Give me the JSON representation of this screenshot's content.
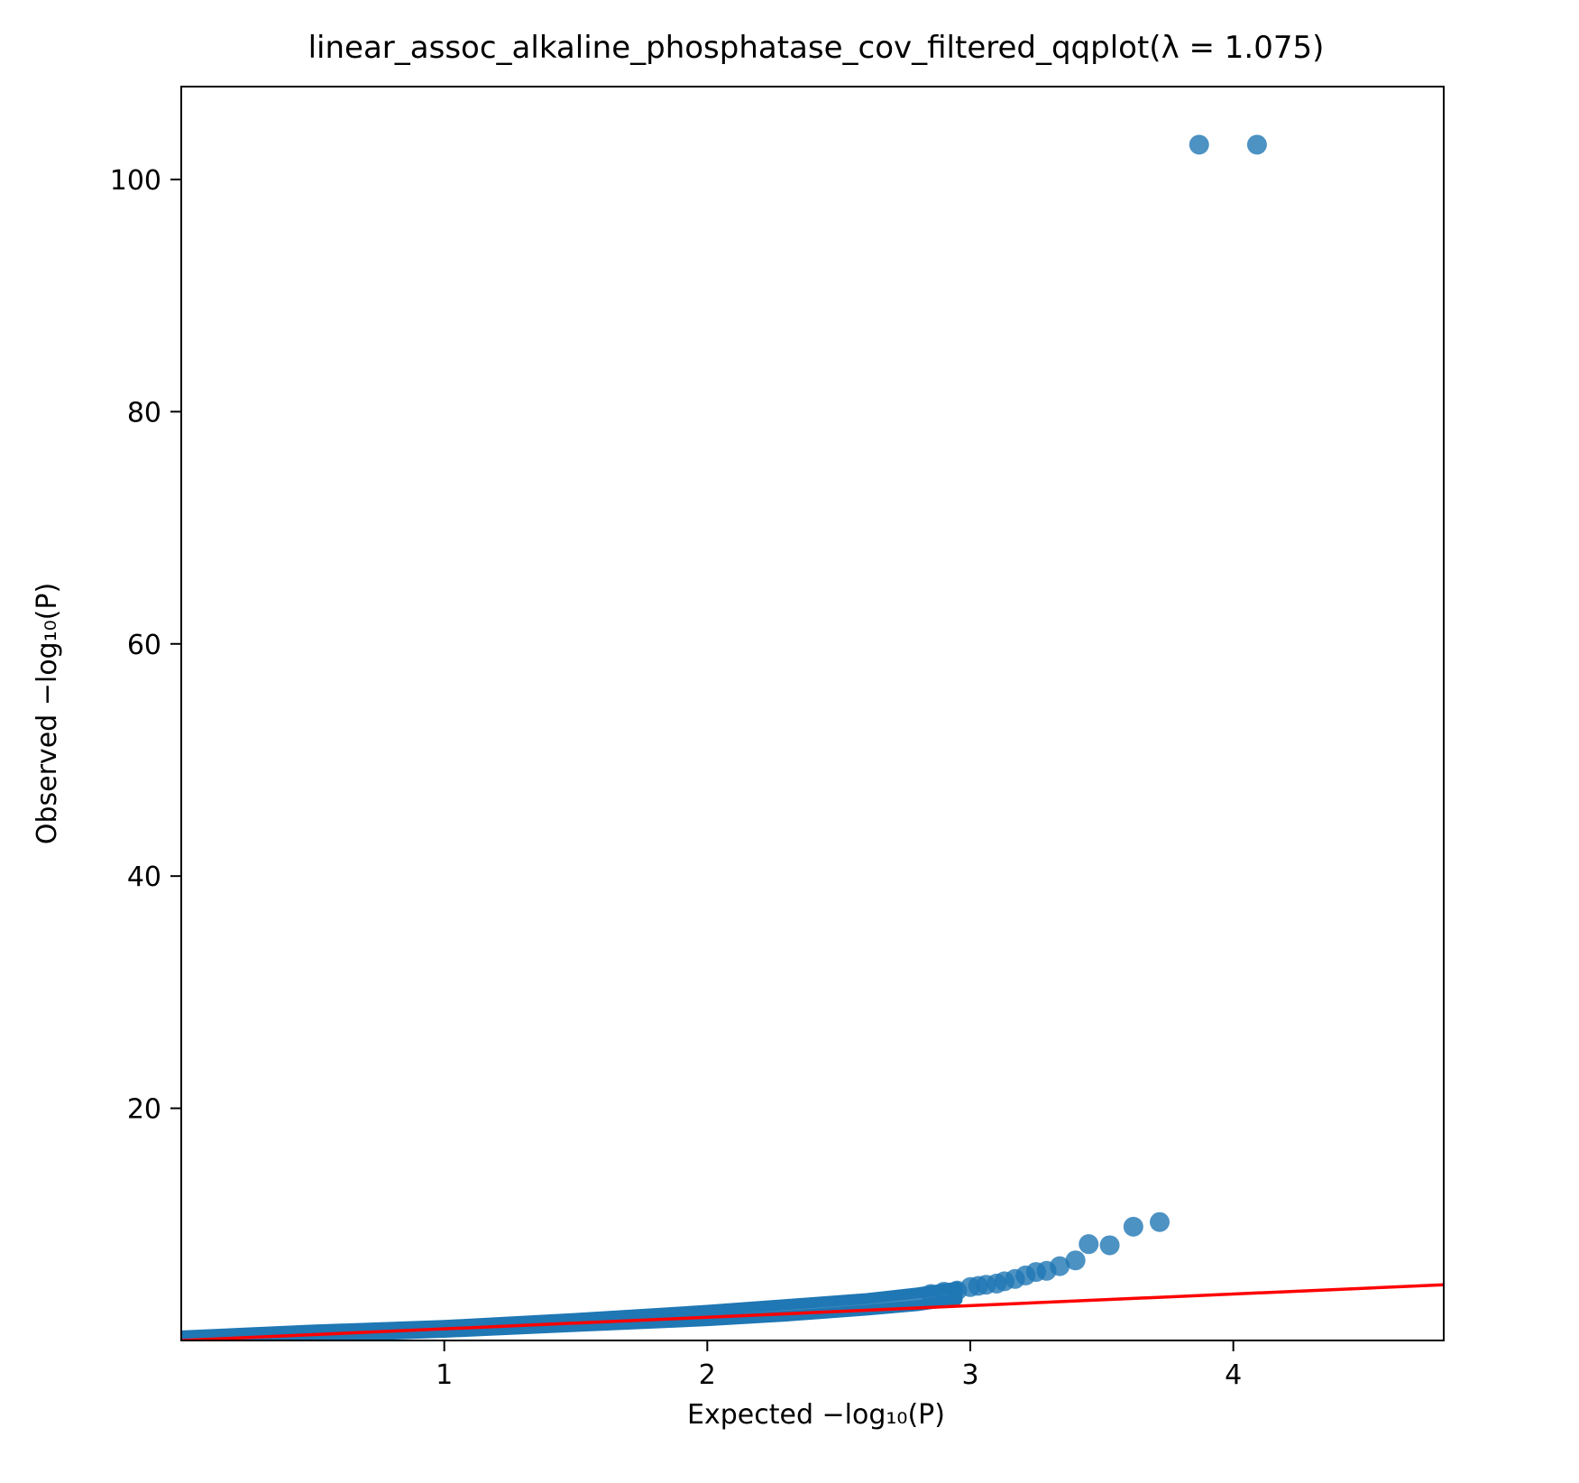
{
  "chart_data": {
    "type": "scatter",
    "title": "linear_assoc_alkaline_phosphatase_cov_filtered_qqplot(λ = 1.075)",
    "xlabel": "Expected −log₁₀(P)",
    "ylabel": "Observed −log₁₀(P)",
    "xlim": [
      0,
      4.8
    ],
    "ylim": [
      0,
      108
    ],
    "xticks": [
      1,
      2,
      3,
      4
    ],
    "yticks": [
      20,
      40,
      60,
      80,
      100
    ],
    "grid": false,
    "legend": "none",
    "point_color": "#1f77b4",
    "line_color": "#ff0000",
    "reference_line": {
      "x": [
        0,
        4.8
      ],
      "y": [
        0,
        4.8
      ]
    },
    "dense_band": {
      "x": [
        0.0,
        0.5,
        1.0,
        1.5,
        2.0,
        2.3,
        2.6,
        2.8,
        2.95
      ],
      "ylow": [
        0.0,
        0.3,
        0.7,
        1.2,
        1.7,
        2.1,
        2.6,
        3.0,
        3.5
      ],
      "yhigh": [
        0.4,
        0.9,
        1.3,
        1.9,
        2.6,
        3.1,
        3.6,
        4.1,
        4.6
      ]
    },
    "points": [
      {
        "x": 2.85,
        "y": 4.0
      },
      {
        "x": 2.9,
        "y": 4.2
      },
      {
        "x": 2.95,
        "y": 4.3
      },
      {
        "x": 3.0,
        "y": 4.6
      },
      {
        "x": 3.03,
        "y": 4.7
      },
      {
        "x": 3.06,
        "y": 4.8
      },
      {
        "x": 3.1,
        "y": 4.9
      },
      {
        "x": 3.13,
        "y": 5.1
      },
      {
        "x": 3.17,
        "y": 5.3
      },
      {
        "x": 3.21,
        "y": 5.6
      },
      {
        "x": 3.25,
        "y": 5.9
      },
      {
        "x": 3.29,
        "y": 6.0
      },
      {
        "x": 3.34,
        "y": 6.4
      },
      {
        "x": 3.4,
        "y": 6.9
      },
      {
        "x": 3.45,
        "y": 8.3
      },
      {
        "x": 3.53,
        "y": 8.2
      },
      {
        "x": 3.62,
        "y": 9.8
      },
      {
        "x": 3.72,
        "y": 10.2
      },
      {
        "x": 3.87,
        "y": 103.0
      },
      {
        "x": 4.09,
        "y": 103.0
      }
    ]
  }
}
